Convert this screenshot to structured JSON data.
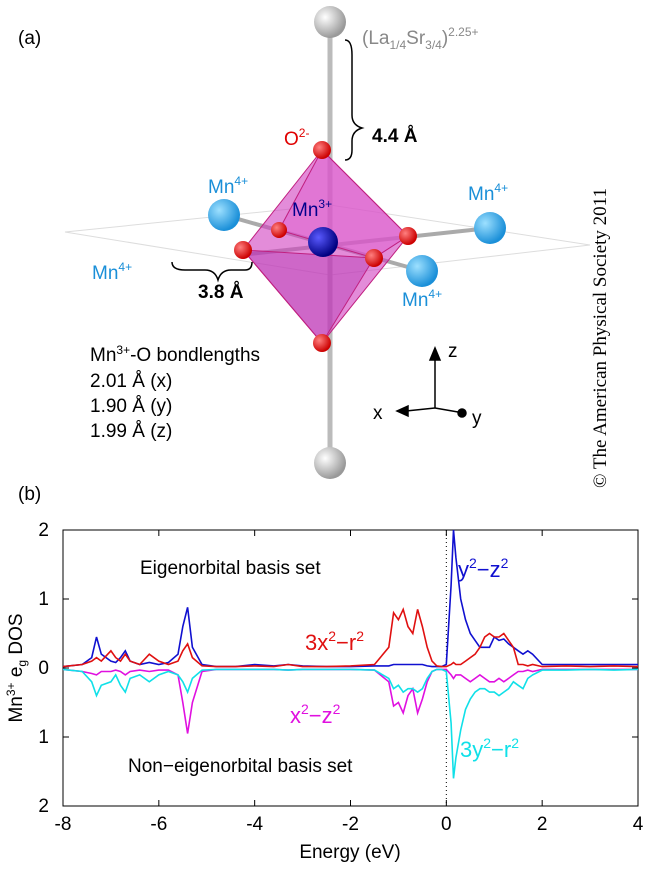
{
  "diagram": {
    "label": "(a)",
    "cation": [
      "(La",
      "1/4",
      "Sr",
      "3/4",
      ")",
      "2.25+"
    ],
    "oxygen": [
      "O",
      "2-"
    ],
    "apical_distance": "4.4 Å",
    "mn4": [
      [
        "Mn",
        "4+"
      ],
      [
        "Mn",
        "4+"
      ],
      [
        "Mn",
        "4+"
      ],
      [
        "Mn",
        "4+"
      ]
    ],
    "mn3": [
      "Mn",
      "3+"
    ],
    "mn_distance": "3.8 Å",
    "bond_title": [
      "Mn",
      "3+",
      "-O bondlengths"
    ],
    "bonds": [
      "2.01 Å (x)",
      "1.90 Å (y)",
      "1.99 Å (z)"
    ],
    "axes": [
      "z",
      "x",
      "y"
    ],
    "copyright": "© The American Physical Society 2011"
  },
  "chart_data": {
    "type": "line",
    "label": "(b)",
    "ylabel": [
      "Mn",
      "3+",
      " e",
      "g",
      " DOS"
    ],
    "xlabel": "Energy (eV)",
    "xlim": [
      -8,
      4
    ],
    "xticks": [
      -8,
      -6,
      -4,
      -2,
      0,
      2,
      4
    ],
    "ylim": [
      -2,
      2
    ],
    "yticks": [
      {
        "value": -2,
        "label": "2"
      },
      {
        "value": -1,
        "label": "1"
      },
      0,
      1,
      2
    ],
    "vline": 0,
    "annotations": [
      "Eigenorbital basis set",
      "Non−eigenorbital basis set"
    ],
    "x": [
      -8,
      -7.6,
      -7.4,
      -7.3,
      -7.2,
      -7.0,
      -6.9,
      -6.8,
      -6.7,
      -6.6,
      -6.4,
      -6.2,
      -6.0,
      -5.8,
      -5.6,
      -5.5,
      -5.4,
      -5.3,
      -5.1,
      -4.8,
      -4.4,
      -4.0,
      -3.6,
      -3.3,
      -3.0,
      -2.5,
      -2.0,
      -1.5,
      -1.2,
      -1.1,
      -1.0,
      -0.9,
      -0.8,
      -0.7,
      -0.6,
      -0.5,
      -0.4,
      -0.3,
      -0.2,
      -0.1,
      0,
      0.1,
      0.15,
      0.2,
      0.3,
      0.4,
      0.5,
      0.6,
      0.7,
      0.8,
      0.9,
      1.0,
      1.1,
      1.2,
      1.3,
      1.4,
      1.5,
      1.6,
      1.7,
      1.8,
      2.0,
      2.5,
      3.0,
      3.5,
      4.0
    ],
    "series": [
      {
        "name": [
          "y",
          "2",
          "−z",
          "2"
        ],
        "color": "#1010d0",
        "values": [
          0.02,
          0.05,
          0.15,
          0.45,
          0.2,
          0.1,
          0.08,
          0.15,
          0.25,
          0.1,
          0.05,
          0.08,
          0.05,
          0.08,
          0.2,
          0.6,
          0.88,
          0.3,
          0.05,
          0.02,
          0.02,
          0.05,
          0.03,
          0.05,
          0.03,
          0.02,
          0.02,
          0.03,
          0.03,
          0.05,
          0.05,
          0.05,
          0.05,
          0.05,
          0.05,
          0.05,
          0.03,
          0.02,
          0.02,
          0.02,
          0.05,
          1.2,
          2.0,
          1.6,
          1.0,
          0.7,
          0.5,
          0.4,
          0.3,
          0.3,
          0.3,
          0.45,
          0.4,
          0.42,
          0.35,
          0.3,
          0.25,
          0.2,
          0.25,
          0.2,
          0.05,
          0.05,
          0.05,
          0.05,
          0.05
        ]
      },
      {
        "name": [
          "3x",
          "2",
          "−r",
          "2"
        ],
        "color": "#e01010",
        "values": [
          0.02,
          0.05,
          0.1,
          0.15,
          0.1,
          0.25,
          0.15,
          0.1,
          0.2,
          0.1,
          0.05,
          0.2,
          0.1,
          0.05,
          0.1,
          0.25,
          0.35,
          0.15,
          0.03,
          0.02,
          0.02,
          0.03,
          0.02,
          0.05,
          0.02,
          0.02,
          0.03,
          0.05,
          0.3,
          0.8,
          0.7,
          0.85,
          0.6,
          0.5,
          0.85,
          0.6,
          0.3,
          0.1,
          0.03,
          0.02,
          0.02,
          0.05,
          0.08,
          0.05,
          0.05,
          0.1,
          0.15,
          0.2,
          0.3,
          0.45,
          0.5,
          0.45,
          0.45,
          0.5,
          0.4,
          0.3,
          0.05,
          0.05,
          0.03,
          0.05,
          0.02,
          0.03,
          0.02,
          0.03,
          0.02
        ]
      },
      {
        "name": [
          "x",
          "2",
          "−z",
          "2"
        ],
        "color": "#e010e0",
        "values": [
          -0.02,
          -0.05,
          -0.08,
          -0.1,
          -0.05,
          -0.05,
          -0.03,
          -0.05,
          -0.1,
          -0.05,
          -0.03,
          -0.05,
          -0.03,
          -0.03,
          -0.1,
          -0.5,
          -0.95,
          -0.5,
          -0.05,
          -0.02,
          -0.02,
          -0.02,
          -0.02,
          -0.03,
          -0.02,
          -0.02,
          -0.02,
          -0.03,
          -0.2,
          -0.55,
          -0.5,
          -0.65,
          -0.4,
          -0.3,
          -0.65,
          -0.45,
          -0.2,
          -0.05,
          -0.02,
          -0.02,
          -0.02,
          -0.1,
          -0.15,
          -0.1,
          -0.1,
          -0.15,
          -0.2,
          -0.15,
          -0.1,
          -0.15,
          -0.2,
          -0.2,
          -0.15,
          -0.2,
          -0.15,
          -0.1,
          -0.05,
          -0.05,
          -0.03,
          -0.05,
          -0.02,
          -0.02,
          -0.02,
          -0.02,
          -0.02
        ]
      },
      {
        "name": [
          "3y",
          "2",
          "−r",
          "2"
        ],
        "color": "#10e0e8",
        "values": [
          -0.02,
          -0.05,
          -0.2,
          -0.4,
          -0.25,
          -0.2,
          -0.1,
          -0.25,
          -0.35,
          -0.15,
          -0.1,
          -0.2,
          -0.1,
          -0.05,
          -0.1,
          -0.2,
          -0.35,
          -0.15,
          -0.03,
          -0.02,
          -0.02,
          -0.02,
          -0.02,
          -0.03,
          -0.02,
          -0.02,
          -0.02,
          -0.03,
          -0.15,
          -0.3,
          -0.25,
          -0.35,
          -0.3,
          -0.3,
          -0.35,
          -0.3,
          -0.15,
          -0.05,
          -0.02,
          -0.02,
          -0.05,
          -0.8,
          -1.6,
          -1.3,
          -0.9,
          -0.6,
          -0.45,
          -0.35,
          -0.3,
          -0.3,
          -0.35,
          -0.35,
          -0.4,
          -0.35,
          -0.3,
          -0.2,
          -0.25,
          -0.3,
          -0.15,
          -0.1,
          -0.03,
          -0.03,
          -0.02,
          -0.03,
          -0.02
        ]
      }
    ]
  }
}
